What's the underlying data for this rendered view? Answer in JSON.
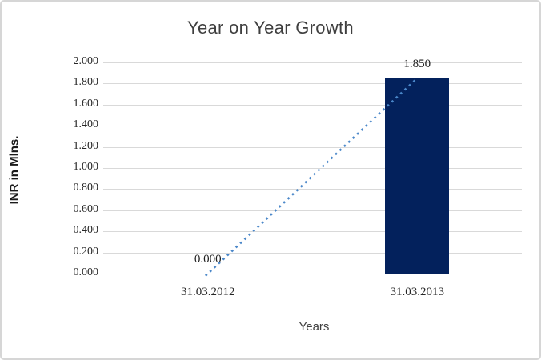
{
  "chart_data": {
    "type": "bar",
    "title": "Year on Year Growth",
    "xlabel": "Years",
    "ylabel": "INR in Mlns.",
    "categories": [
      "31.03.2012",
      "31.03.2013"
    ],
    "series": [
      {
        "name": "INR in Mlns.",
        "type": "bar",
        "values": [
          0.0,
          1.85
        ],
        "data_labels": [
          "0.000",
          "1.850"
        ],
        "color": "#03215c"
      },
      {
        "name": "trend",
        "type": "line",
        "line_style": "dotted",
        "values": [
          0.0,
          1.85
        ],
        "color": "#4a87c9"
      }
    ],
    "ylim": [
      0,
      2
    ],
    "ytick_step": 0.2,
    "ytick_labels": [
      "0.000",
      "0.200",
      "0.400",
      "0.600",
      "0.800",
      "1.000",
      "1.200",
      "1.400",
      "1.600",
      "1.800",
      "2.000"
    ],
    "grid": true,
    "legend": "none",
    "colors": {
      "gridline": "#d9d9d9",
      "axis_line": "#d9d9d9",
      "tick_text": "#262626",
      "title_text": "#3f3f3f",
      "frame_border": "#d6d6d6"
    }
  }
}
